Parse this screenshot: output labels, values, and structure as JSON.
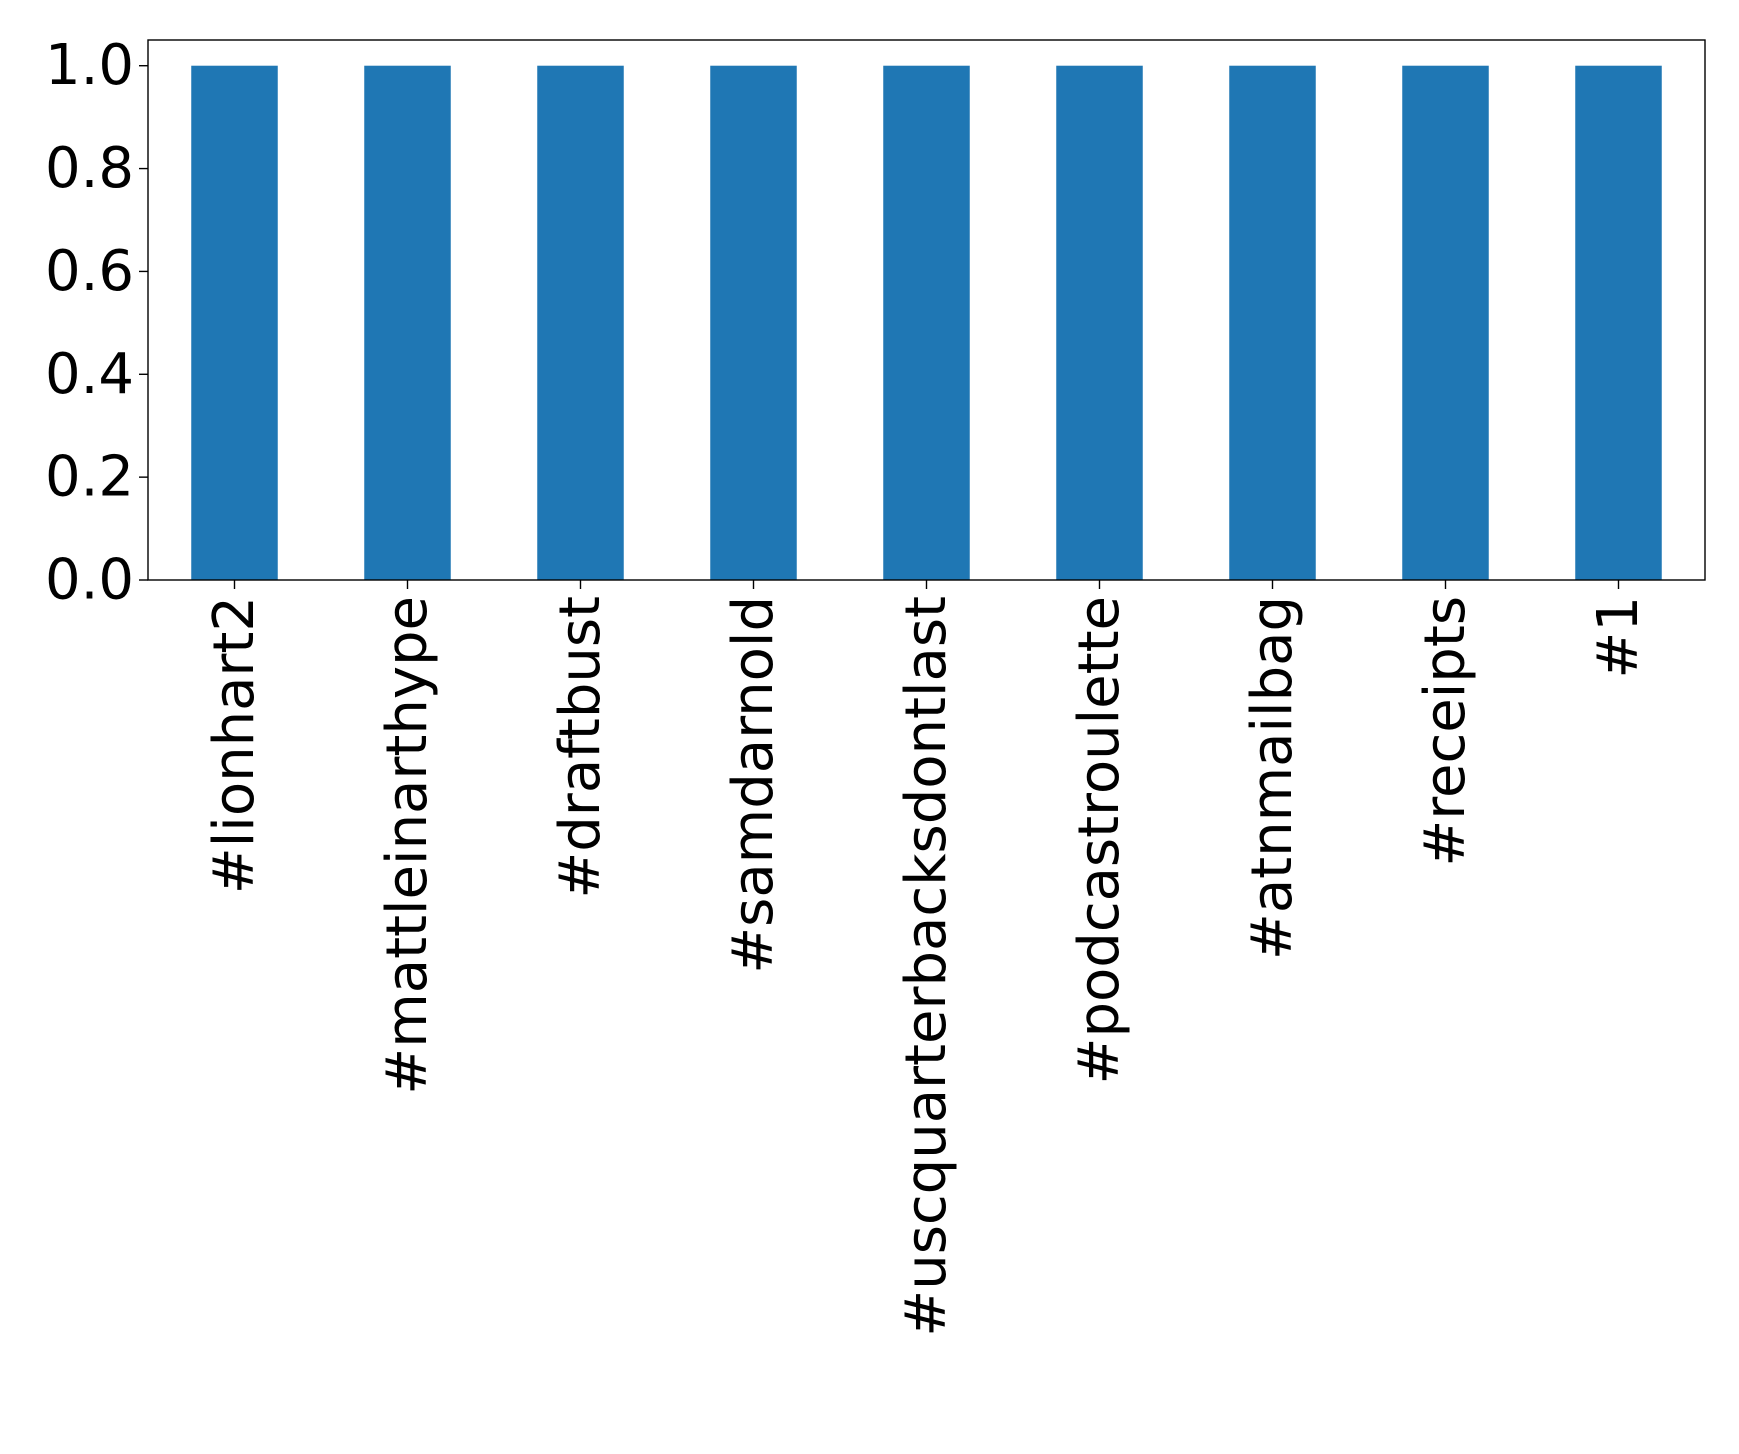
{
  "chart_data": {
    "type": "bar",
    "categories": [
      "#lionhart2",
      "#mattleinarthype",
      "#draftbust",
      "#samdarnold",
      "#uscquarterbacksdontlast",
      "#podcastroulette",
      "#atnmailbag",
      "#receipts",
      "#1"
    ],
    "values": [
      1.0,
      1.0,
      1.0,
      1.0,
      1.0,
      1.0,
      1.0,
      1.0,
      1.0
    ],
    "ylim": [
      0.0,
      1.05
    ],
    "yticks": [
      0.0,
      0.2,
      0.4,
      0.6,
      0.8,
      1.0
    ],
    "ytick_labels": [
      "0.0",
      "0.2",
      "0.4",
      "0.6",
      "0.8",
      "1.0"
    ],
    "title": "",
    "xlabel": "",
    "ylabel": "",
    "bar_color": "#1f77b4",
    "grid": false,
    "legend": "none",
    "x_tick_rotation": "vertical"
  }
}
